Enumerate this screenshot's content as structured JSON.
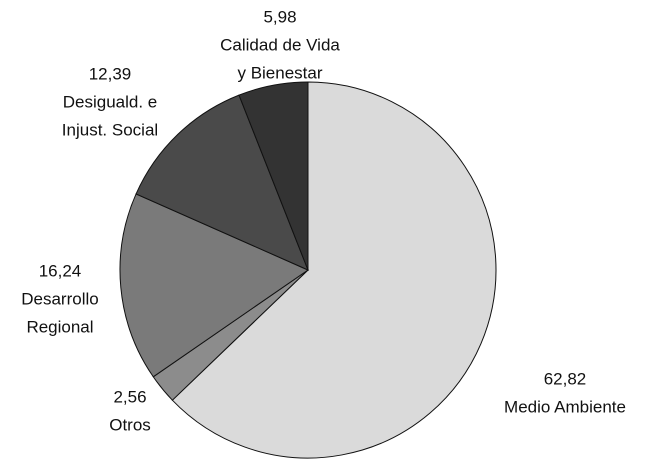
{
  "chart_data": {
    "type": "pie",
    "categories": [
      [
        "Medio Ambiente"
      ],
      [
        "Otros"
      ],
      [
        "Desarrollo",
        "Regional"
      ],
      [
        "Desiguald. e",
        "Injust. Social"
      ],
      [
        "Calidad de Vida",
        "y Bienestar"
      ]
    ],
    "values": [
      62.82,
      2.56,
      16.24,
      12.39,
      5.98
    ],
    "value_labels": [
      "62,82",
      "2,56",
      "16,24",
      "12,39",
      "5,98"
    ],
    "colors": [
      "#dadada",
      "#8c8c8c",
      "#7a7a7a",
      "#4a4a4a",
      "#333333"
    ]
  }
}
